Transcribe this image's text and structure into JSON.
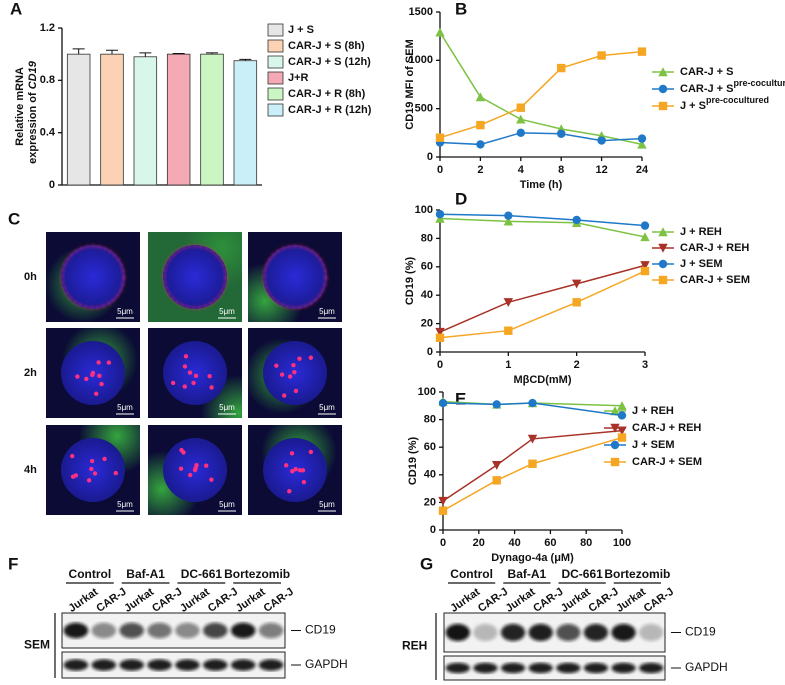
{
  "panel_letters": [
    "A",
    "B",
    "C",
    "D",
    "E",
    "F",
    "G"
  ],
  "chart_data": [
    {
      "type": "bar",
      "y_label_lines": [
        "Relative mRNA",
        "expression of"
      ],
      "y_label_italic": "CD19",
      "categories": [
        "J + S",
        "CAR-J + S (8h)",
        "CAR-J + S (12h)",
        "J+R",
        "CAR-J + R (8h)",
        "CAR-J + R (12h)"
      ],
      "values": [
        1.0,
        1.0,
        0.98,
        1.0,
        1.0,
        0.95
      ],
      "errors": [
        0.04,
        0.03,
        0.03,
        0.005,
        0.01,
        0.01
      ],
      "colors": [
        "#e6e6e6",
        "#fbd2b4",
        "#d9f6ea",
        "#f5a9b5",
        "#cbf5c2",
        "#cbeff8"
      ],
      "ylim": [
        0,
        1.2
      ],
      "yticks": [
        0,
        0.4,
        0.8,
        1.2
      ]
    },
    {
      "type": "line",
      "x_label": "Time (h)",
      "y_label": "CD19 MFI of SEM",
      "categories": [
        0,
        2,
        4,
        8,
        12,
        24
      ],
      "ylim": [
        0,
        1500
      ],
      "yticks": [
        0,
        500,
        1000,
        1500
      ],
      "series": [
        {
          "name": "CAR-J + S",
          "color": "#7dc242",
          "marker": "triangle",
          "values": [
            1290,
            620,
            390,
            290,
            220,
            130
          ]
        },
        {
          "name": "CAR-J + S",
          "name_sup": "pre-cocultured",
          "color": "#1f78c8",
          "marker": "circle",
          "values": [
            150,
            130,
            250,
            240,
            170,
            190
          ]
        },
        {
          "name": "J + S",
          "name_sup": "pre-cocultured",
          "color": "#f5a623",
          "marker": "square",
          "values": [
            200,
            330,
            510,
            920,
            1050,
            1090
          ]
        }
      ]
    },
    {
      "type": "line",
      "x_label": "MβCD(mM)",
      "y_label": "CD19  (%)",
      "x": [
        0,
        1,
        2,
        3
      ],
      "xlim": [
        0,
        3
      ],
      "xticks": [
        0,
        1,
        2,
        3
      ],
      "ylim": [
        0,
        100
      ],
      "yticks": [
        0,
        20,
        40,
        60,
        80,
        100
      ],
      "series": [
        {
          "name": "J + REH",
          "color": "#7dc242",
          "marker": "triangle",
          "values": [
            94,
            92,
            91,
            81
          ]
        },
        {
          "name": "CAR-J + REH",
          "color": "#a83228",
          "marker": "tri-down",
          "values": [
            14,
            35,
            48,
            61
          ]
        },
        {
          "name": "J + SEM",
          "color": "#1f78c8",
          "marker": "circle",
          "values": [
            97,
            96,
            93,
            89
          ]
        },
        {
          "name": "CAR-J + SEM",
          "color": "#f5a623",
          "marker": "square",
          "values": [
            10,
            15,
            35,
            57
          ]
        }
      ]
    },
    {
      "type": "line",
      "x_label": "Dynago-4a (μM)",
      "y_label": "CD19 (%)",
      "x": [
        0,
        30,
        50,
        100
      ],
      "xlim": [
        0,
        100
      ],
      "xticks": [
        0,
        20,
        40,
        60,
        80,
        100
      ],
      "ylim": [
        0,
        100
      ],
      "yticks": [
        0,
        20,
        40,
        60,
        80,
        100
      ],
      "series": [
        {
          "name": "J + REH",
          "color": "#7dc242",
          "marker": "triangle",
          "values": [
            93,
            91,
            92,
            90
          ]
        },
        {
          "name": "CAR-J + REH",
          "color": "#a83228",
          "marker": "tri-down",
          "values": [
            21,
            47,
            66,
            72
          ]
        },
        {
          "name": "J + SEM",
          "color": "#1f78c8",
          "marker": "circle",
          "values": [
            92,
            91,
            92,
            83
          ]
        },
        {
          "name": "CAR-J + SEM",
          "color": "#f5a623",
          "marker": "square",
          "values": [
            14,
            36,
            48,
            67
          ]
        }
      ]
    }
  ],
  "panel_c": {
    "row_labels": [
      "0h",
      "2h",
      "4h"
    ],
    "scale_bar": "5μm"
  },
  "panel_f": {
    "groups": [
      "Control",
      "Baf-A1",
      "DC-661",
      "Bortezomib"
    ],
    "lanes": [
      "Jurkat",
      "CAR-J"
    ],
    "proteins": [
      "CD19",
      "GAPDH"
    ],
    "cell_line": "SEM"
  },
  "panel_g": {
    "groups": [
      "Control",
      "Baf-A1",
      "DC-661",
      "Bortezomib"
    ],
    "lanes": [
      "Jurkat",
      "CAR-J"
    ],
    "proteins": [
      "CD19",
      "GAPDH"
    ],
    "cell_line": "REH"
  }
}
